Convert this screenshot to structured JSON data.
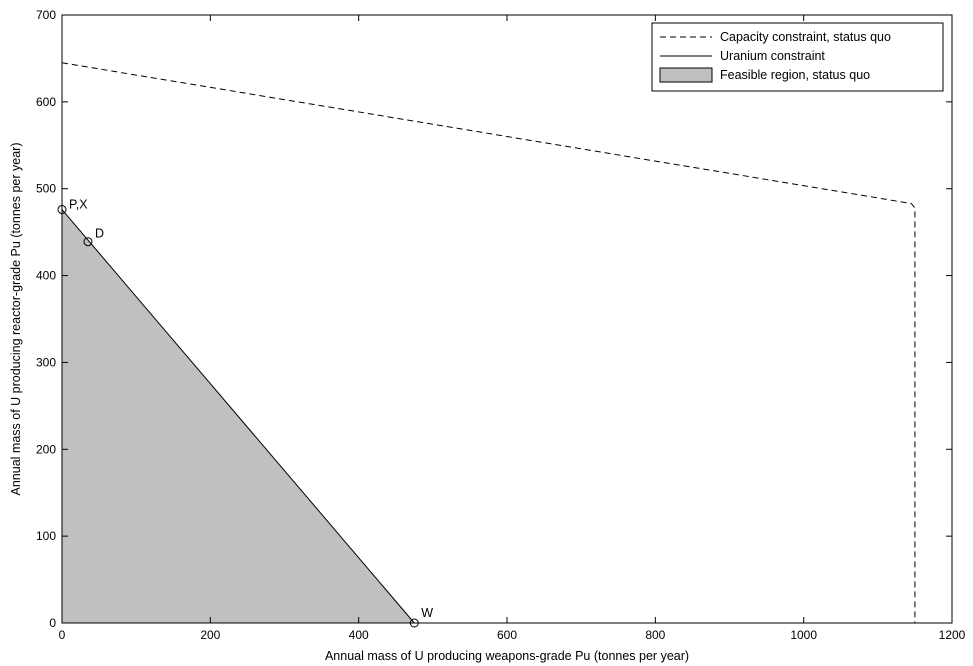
{
  "chart_data": {
    "type": "line",
    "xlabel": "Annual mass of U producing weapons-grade Pu (tonnes per year)",
    "ylabel": "Annual mass of U producing reactor-grade Pu (tonnes per year)",
    "xlim": [
      0,
      1200
    ],
    "ylim": [
      0,
      700
    ],
    "xticks": [
      0,
      200,
      400,
      600,
      800,
      1000,
      1200
    ],
    "yticks": [
      0,
      100,
      200,
      300,
      400,
      500,
      600,
      700
    ],
    "xtick_labels": [
      "0",
      "200",
      "400",
      "600",
      "800",
      "1000",
      "1200"
    ],
    "ytick_labels": [
      "0",
      "100",
      "200",
      "300",
      "400",
      "500",
      "600",
      "700"
    ],
    "grid": false,
    "legend_position": "top-right",
    "series": [
      {
        "name": "Capacity constraint, status quo",
        "style": "dashed",
        "color": "#000000",
        "x": [
          0,
          1145,
          1150,
          1150
        ],
        "y": [
          645,
          483,
          478,
          0
        ]
      },
      {
        "name": "Uranium constraint",
        "style": "solid",
        "color": "#000000",
        "x": [
          0,
          475
        ],
        "y": [
          476,
          0
        ]
      }
    ],
    "areas": [
      {
        "name": "Feasible region, status quo",
        "fill": "#c0c0c0",
        "x": [
          0,
          0,
          475
        ],
        "y": [
          0,
          476,
          0
        ]
      }
    ],
    "points": [
      {
        "label": "P,X",
        "x": 0,
        "y": 476
      },
      {
        "label": "D",
        "x": 35,
        "y": 439
      },
      {
        "label": "W",
        "x": 475,
        "y": 0
      }
    ]
  }
}
